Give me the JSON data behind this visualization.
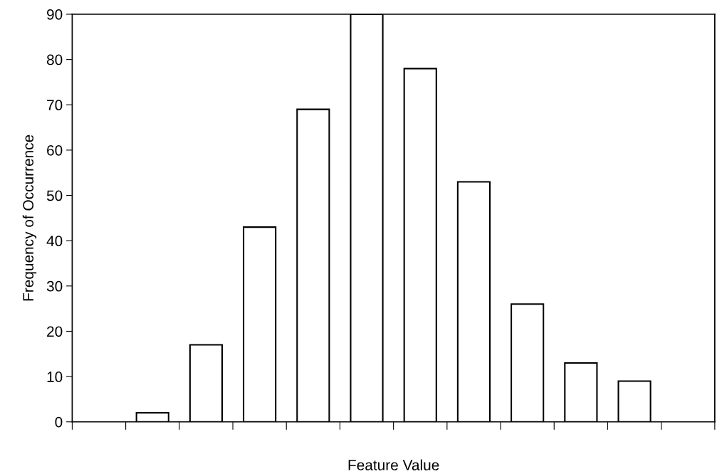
{
  "chart_data": {
    "type": "bar",
    "xlabel": "Feature Value",
    "ylabel": "Frequency of Occurrence",
    "categories": [
      null,
      null,
      null,
      null,
      null,
      null,
      null,
      null,
      null,
      null,
      null,
      null
    ],
    "values": [
      0,
      2,
      17,
      43,
      69,
      90,
      78,
      53,
      26,
      13,
      9,
      0
    ],
    "color": "#ffffff",
    "ylim": [
      0,
      90
    ],
    "yticks": [
      0,
      10,
      20,
      30,
      40,
      50,
      60,
      70,
      80,
      90
    ],
    "grid": false,
    "tick_labels": "y"
  }
}
